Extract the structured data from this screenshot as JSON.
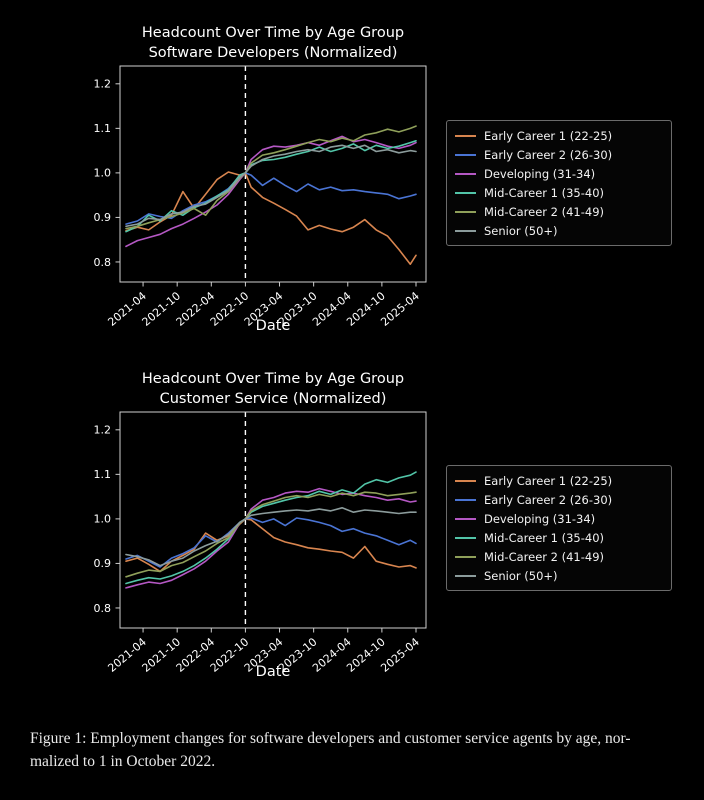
{
  "page": {
    "background": "#000000",
    "text_color": "#ffffff"
  },
  "caption": {
    "line1": "Figure 1: Employment changes for software developers and customer service agents by age, nor-",
    "line2": "malized to 1 in October 2022."
  },
  "axis_style": {
    "spine_color": "#cfcfcf",
    "tick_color": "#cfcfcf",
    "tick_label_color": "#ffffff",
    "vline_color": "#ffffff",
    "vline_style": "dashed"
  },
  "chart_data": [
    {
      "type": "line",
      "title_line1": "Headcount Over Time by Age Group",
      "title_line2": "Software Developers (Normalized)",
      "xlabel": "Date",
      "ylabel": "",
      "ylim": [
        0.755,
        1.24
      ],
      "yticks": [
        0.8,
        0.9,
        1.0,
        1.1,
        1.2
      ],
      "xtick_labels": [
        "2021-04",
        "2021-10",
        "2022-04",
        "2022-10",
        "2023-04",
        "2023-10",
        "2024-04",
        "2024-10",
        "2025-04"
      ],
      "xtick_months": [
        3,
        9,
        15,
        21,
        27,
        33,
        39,
        45,
        51
      ],
      "x_axis_start": "2021-01",
      "x_months": [
        0,
        2,
        4,
        6,
        8,
        10,
        12,
        14,
        16,
        18,
        20,
        21,
        22,
        24,
        26,
        28,
        30,
        32,
        34,
        36,
        38,
        40,
        42,
        44,
        46,
        48,
        50,
        51
      ],
      "normalization_vline_month": 21,
      "normalization_vline_date": "2022-10",
      "legend_position": "right",
      "grid": false,
      "series": [
        {
          "name": "Early Career 1 (22-25)",
          "color": "#d8854f",
          "values": [
            0.87,
            0.878,
            0.872,
            0.89,
            0.905,
            0.958,
            0.92,
            0.952,
            0.985,
            1.002,
            0.995,
            1.0,
            0.968,
            0.945,
            0.932,
            0.918,
            0.903,
            0.872,
            0.882,
            0.874,
            0.868,
            0.878,
            0.895,
            0.872,
            0.858,
            0.828,
            0.795,
            0.815
          ]
        },
        {
          "name": "Early Career 2 (26-30)",
          "color": "#4a74d4",
          "values": [
            0.885,
            0.892,
            0.908,
            0.902,
            0.898,
            0.915,
            0.928,
            0.935,
            0.948,
            0.965,
            0.992,
            1.0,
            0.995,
            0.972,
            0.988,
            0.972,
            0.958,
            0.975,
            0.962,
            0.968,
            0.96,
            0.962,
            0.958,
            0.955,
            0.952,
            0.942,
            0.948,
            0.952
          ]
        },
        {
          "name": "Developing (31-34)",
          "color": "#b558c4",
          "values": [
            0.835,
            0.848,
            0.855,
            0.862,
            0.875,
            0.885,
            0.898,
            0.912,
            0.928,
            0.952,
            0.985,
            1.0,
            1.03,
            1.052,
            1.06,
            1.058,
            1.062,
            1.068,
            1.062,
            1.072,
            1.082,
            1.07,
            1.075,
            1.068,
            1.06,
            1.055,
            1.062,
            1.068
          ]
        },
        {
          "name": "Mid-Career 1 (35-40)",
          "color": "#52c5a8",
          "values": [
            0.868,
            0.88,
            0.905,
            0.892,
            0.915,
            0.905,
            0.922,
            0.932,
            0.948,
            0.962,
            0.995,
            1.0,
            1.018,
            1.028,
            1.03,
            1.035,
            1.042,
            1.048,
            1.058,
            1.048,
            1.055,
            1.065,
            1.05,
            1.062,
            1.055,
            1.06,
            1.068,
            1.072
          ]
        },
        {
          "name": "Mid-Career 2 (41-49)",
          "color": "#8fa05a",
          "values": [
            0.875,
            0.88,
            0.888,
            0.895,
            0.902,
            0.91,
            0.92,
            0.905,
            0.938,
            0.958,
            0.988,
            1.0,
            1.022,
            1.04,
            1.045,
            1.052,
            1.06,
            1.068,
            1.075,
            1.07,
            1.078,
            1.072,
            1.085,
            1.09,
            1.098,
            1.092,
            1.1,
            1.105
          ]
        },
        {
          "name": "Senior (50+)",
          "color": "#8c9c9c",
          "values": [
            0.88,
            0.885,
            0.898,
            0.895,
            0.908,
            0.912,
            0.925,
            0.93,
            0.945,
            0.96,
            0.99,
            1.0,
            1.015,
            1.03,
            1.038,
            1.042,
            1.048,
            1.052,
            1.048,
            1.058,
            1.062,
            1.055,
            1.062,
            1.048,
            1.052,
            1.045,
            1.05,
            1.048
          ]
        }
      ]
    },
    {
      "type": "line",
      "title_line1": "Headcount Over Time by Age Group",
      "title_line2": "Customer Service (Normalized)",
      "xlabel": "Date",
      "ylabel": "",
      "ylim": [
        0.755,
        1.24
      ],
      "yticks": [
        0.8,
        0.9,
        1.0,
        1.1,
        1.2
      ],
      "xtick_labels": [
        "2021-04",
        "2021-10",
        "2022-04",
        "2022-10",
        "2023-04",
        "2023-10",
        "2024-04",
        "2024-10",
        "2025-04"
      ],
      "xtick_months": [
        3,
        9,
        15,
        21,
        27,
        33,
        39,
        45,
        51
      ],
      "x_axis_start": "2021-01",
      "x_months": [
        0,
        2,
        4,
        6,
        8,
        10,
        12,
        14,
        16,
        18,
        20,
        21,
        22,
        24,
        26,
        28,
        30,
        32,
        34,
        36,
        38,
        40,
        42,
        44,
        46,
        48,
        50,
        51
      ],
      "normalization_vline_month": 21,
      "normalization_vline_date": "2022-10",
      "legend_position": "right",
      "grid": false,
      "series": [
        {
          "name": "Early Career 1 (22-25)",
          "color": "#d8854f",
          "values": [
            0.905,
            0.912,
            0.898,
            0.882,
            0.905,
            0.918,
            0.932,
            0.968,
            0.952,
            0.962,
            0.988,
            1.0,
            0.998,
            0.978,
            0.958,
            0.948,
            0.942,
            0.935,
            0.932,
            0.928,
            0.925,
            0.912,
            0.938,
            0.905,
            0.898,
            0.892,
            0.895,
            0.89
          ]
        },
        {
          "name": "Early Career 2 (26-30)",
          "color": "#4a74d4",
          "values": [
            0.91,
            0.918,
            0.905,
            0.892,
            0.912,
            0.922,
            0.935,
            0.962,
            0.948,
            0.968,
            0.992,
            1.0,
            1.002,
            0.992,
            1.0,
            0.985,
            1.002,
            0.998,
            0.992,
            0.985,
            0.972,
            0.978,
            0.968,
            0.962,
            0.952,
            0.942,
            0.952,
            0.945
          ]
        },
        {
          "name": "Developing (31-34)",
          "color": "#b558c4",
          "values": [
            0.845,
            0.852,
            0.858,
            0.855,
            0.862,
            0.875,
            0.888,
            0.905,
            0.928,
            0.948,
            0.99,
            1.0,
            1.022,
            1.042,
            1.048,
            1.058,
            1.062,
            1.06,
            1.068,
            1.062,
            1.055,
            1.058,
            1.052,
            1.048,
            1.042,
            1.045,
            1.038,
            1.04
          ]
        },
        {
          "name": "Mid-Career 1 (35-40)",
          "color": "#52c5a8",
          "values": [
            0.855,
            0.862,
            0.868,
            0.865,
            0.872,
            0.882,
            0.895,
            0.912,
            0.932,
            0.955,
            0.992,
            1.0,
            1.015,
            1.028,
            1.035,
            1.042,
            1.048,
            1.052,
            1.062,
            1.055,
            1.065,
            1.058,
            1.078,
            1.088,
            1.082,
            1.092,
            1.098,
            1.105
          ]
        },
        {
          "name": "Mid-Career 2 (41-49)",
          "color": "#8fa05a",
          "values": [
            0.87,
            0.878,
            0.885,
            0.882,
            0.895,
            0.902,
            0.915,
            0.928,
            0.945,
            0.958,
            0.99,
            1.0,
            1.018,
            1.032,
            1.04,
            1.048,
            1.052,
            1.048,
            1.055,
            1.05,
            1.058,
            1.052,
            1.06,
            1.058,
            1.052,
            1.055,
            1.058,
            1.06
          ]
        },
        {
          "name": "Senior (50+)",
          "color": "#8c9c9c",
          "values": [
            0.92,
            0.915,
            0.908,
            0.895,
            0.905,
            0.912,
            0.928,
            0.94,
            0.95,
            0.965,
            0.992,
            1.0,
            1.008,
            1.012,
            1.015,
            1.018,
            1.02,
            1.018,
            1.022,
            1.018,
            1.025,
            1.015,
            1.02,
            1.018,
            1.015,
            1.012,
            1.015,
            1.015
          ]
        }
      ]
    }
  ]
}
